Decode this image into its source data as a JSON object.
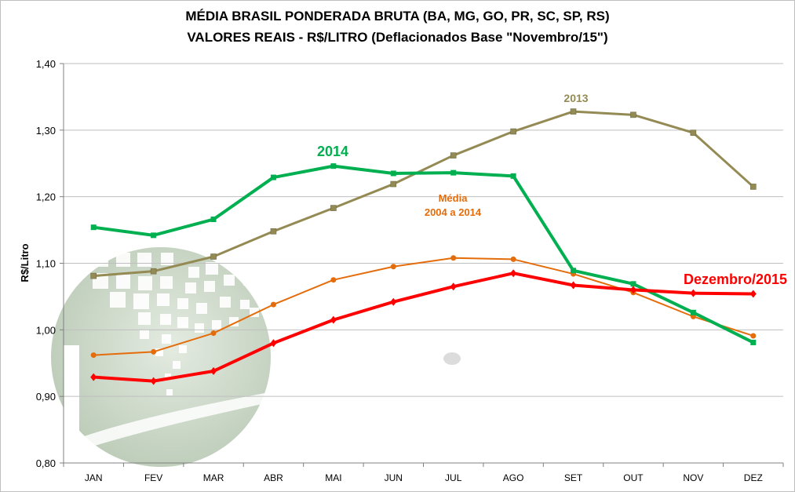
{
  "title_line1": "MÉDIA BRASIL PONDERADA BRUTA (BA, MG, GO, PR, SC, SP, RS)",
  "title_line2": "VALORES REAIS - R$/LITRO (Deflacionados Base \"Novembro/15\")",
  "chart_data": {
    "type": "line",
    "categories": [
      "JAN",
      "FEV",
      "MAR",
      "ABR",
      "MAI",
      "JUN",
      "JUL",
      "AGO",
      "SET",
      "OUT",
      "NOV",
      "DEZ"
    ],
    "ylabel": "R$/Litro",
    "ylim": [
      0.8,
      1.4
    ],
    "y_ticks": [
      "0,80",
      "0,90",
      "1,00",
      "1,10",
      "1,20",
      "1,30",
      "1,40"
    ],
    "grid": true,
    "series": [
      {
        "name": "2013",
        "label_lines": [
          "2013"
        ],
        "color": "#948a54",
        "marker": "square",
        "values": [
          1.081,
          1.088,
          1.11,
          1.148,
          1.183,
          1.219,
          1.262,
          1.298,
          1.328,
          1.323,
          1.296,
          1.215
        ]
      },
      {
        "name": "Média 2004 a 2014",
        "label_lines": [
          "Média",
          "2004 a 2014"
        ],
        "color": "#e46c0a",
        "marker": "circle",
        "values": [
          0.962,
          0.967,
          0.995,
          1.038,
          1.075,
          1.095,
          1.108,
          1.106,
          1.084,
          1.056,
          1.02,
          0.991
        ]
      },
      {
        "name": "2014",
        "label_lines": [
          "2014"
        ],
        "color": "#00b050",
        "marker": "square",
        "values": [
          1.154,
          1.142,
          1.166,
          1.229,
          1.246,
          1.235,
          1.236,
          1.231,
          1.089,
          1.069,
          1.026,
          0.981
        ]
      },
      {
        "name": "Dezembro/2015",
        "label_lines": [
          "Dezembro/2015"
        ],
        "color": "#ff0000",
        "marker": "diamond",
        "values": [
          0.929,
          0.923,
          0.938,
          0.98,
          1.015,
          1.042,
          1.065,
          1.085,
          1.067,
          1.06,
          1.055,
          1.054
        ]
      }
    ]
  }
}
